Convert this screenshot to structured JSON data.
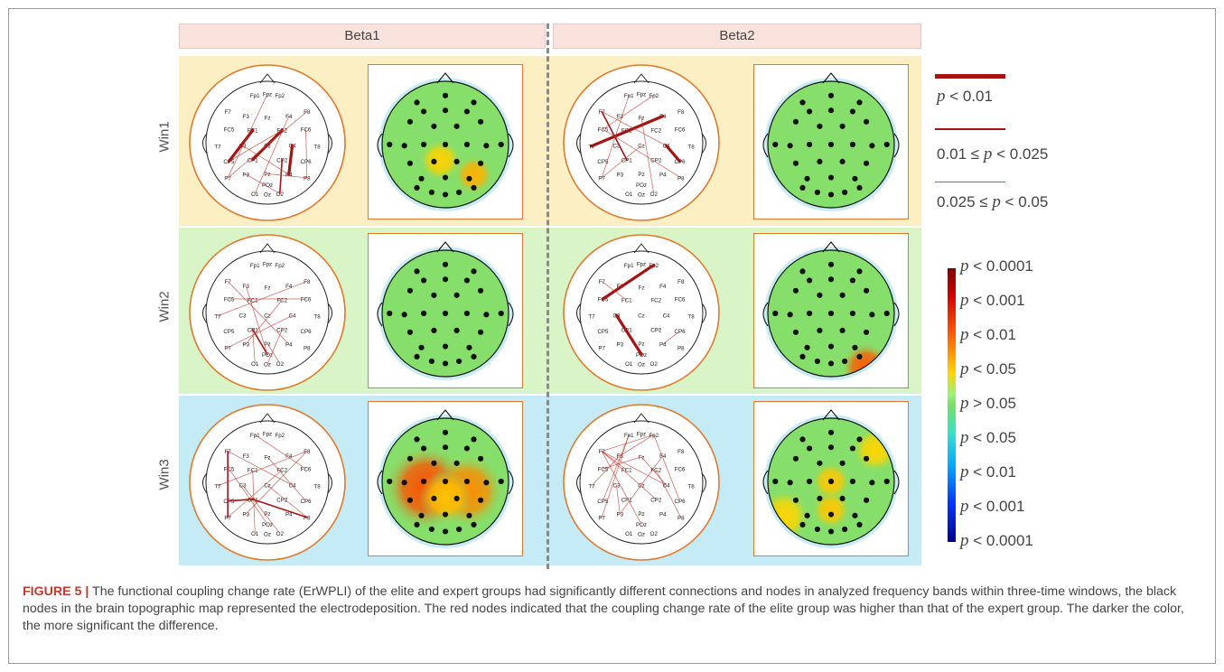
{
  "figure": {
    "columns": [
      "Beta1",
      "Beta2"
    ],
    "rows": [
      {
        "label": "Win1",
        "color": "#fcefc4"
      },
      {
        "label": "Win2",
        "color": "#d9f5c7"
      },
      {
        "label": "Win3",
        "color": "#c5ecf6"
      }
    ],
    "electrodes": [
      "Fp1",
      "Fpz",
      "Fp2",
      "F7",
      "F3",
      "Fz",
      "F4",
      "F8",
      "FC5",
      "FC1",
      "FC2",
      "FC6",
      "T7",
      "C3",
      "Cz",
      "C4",
      "T8",
      "CP5",
      "CP1",
      "CP2",
      "CP6",
      "P7",
      "P3",
      "Pz",
      "P4",
      "P8",
      "POz",
      "O1",
      "Oz",
      "O2"
    ],
    "legend_lines": [
      {
        "pre": "",
        "p": "p",
        "post": " < 0.01"
      },
      {
        "pre": "0.01 ≤ ",
        "p": "p",
        "post": " < 0.025"
      },
      {
        "pre": "0.025 ≤ ",
        "p": "p",
        "post": " < 0.05"
      }
    ],
    "colorbar_ticks": [
      {
        "p": "p",
        "t": " < 0.0001"
      },
      {
        "p": "p",
        "t": " < 0.001"
      },
      {
        "p": "p",
        "t": " < 0.01"
      },
      {
        "p": "p",
        "t": " < 0.05"
      },
      {
        "p": "p",
        "t": " > 0.05"
      },
      {
        "p": "p",
        "t": " < 0.05"
      },
      {
        "p": "p",
        "t": " < 0.01"
      },
      {
        "p": "p",
        "t": " < 0.001"
      },
      {
        "p": "p",
        "t": " < 0.0001"
      }
    ],
    "caption_label": "FIGURE 5 |",
    "caption_text": " The functional coupling change rate (ErWPLI) of the elite and expert groups had significantly different connections and nodes in analyzed frequency bands within three-time windows, the black nodes in the brain topographic map represented the electrodeposition. The red nodes indicated that the coupling change rate of the elite group was higher than that of the expert group. The darker the color, the more significant the difference."
  }
}
